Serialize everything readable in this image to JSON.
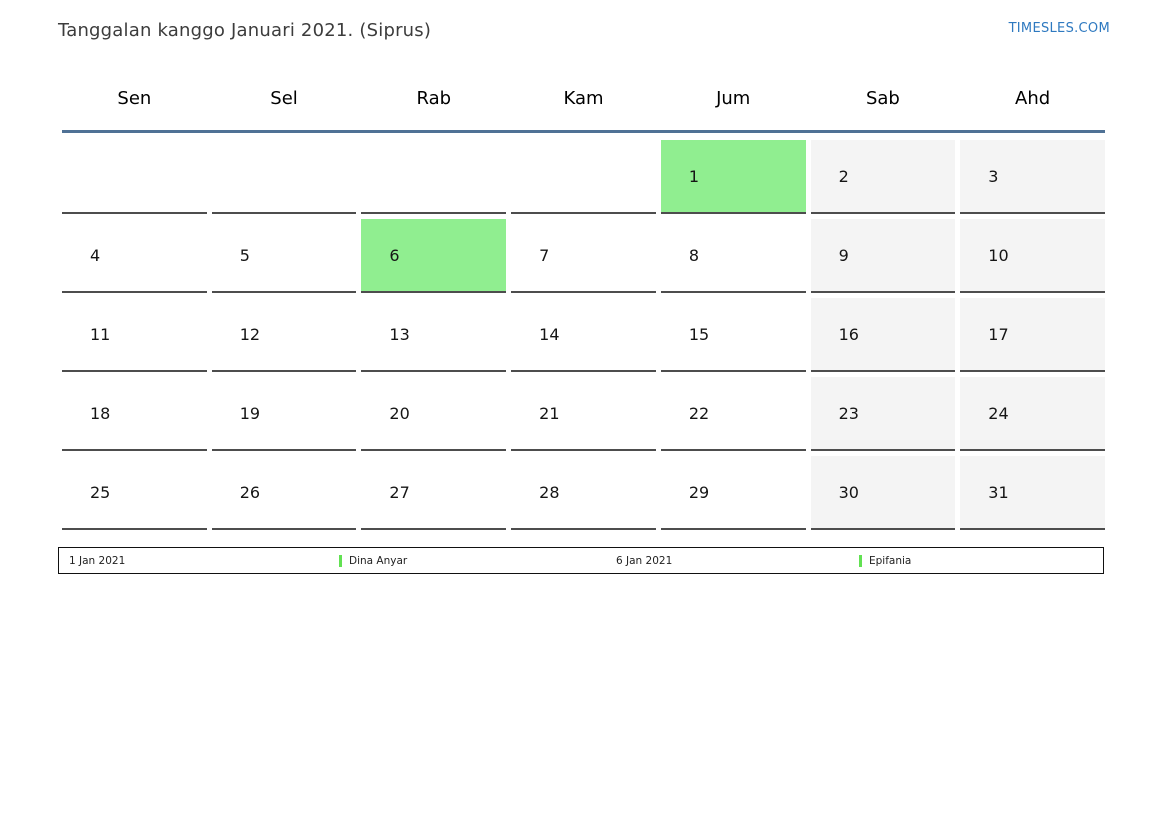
{
  "page": {
    "title": "Tanggalan kanggo Januari 2021. (Siprus)",
    "brand": "TIMESLES.COM"
  },
  "calendar": {
    "month": "Januari",
    "year": "2021",
    "region": "Siprus",
    "day_headers": [
      "Sen",
      "Sel",
      "Rab",
      "Kam",
      "Jum",
      "Sab",
      "Ahd"
    ],
    "weekend_columns": [
      5,
      6
    ],
    "holiday_days": [
      "1",
      "6"
    ],
    "weeks": [
      [
        "",
        "",
        "",
        "",
        "1",
        "2",
        "3"
      ],
      [
        "4",
        "5",
        "6",
        "7",
        "8",
        "9",
        "10"
      ],
      [
        "11",
        "12",
        "13",
        "14",
        "15",
        "16",
        "17"
      ],
      [
        "18",
        "19",
        "20",
        "21",
        "22",
        "23",
        "24"
      ],
      [
        "25",
        "26",
        "27",
        "28",
        "29",
        "30",
        "31"
      ]
    ]
  },
  "legend": {
    "items": [
      {
        "type": "date",
        "label": "1 Jan 2021"
      },
      {
        "type": "event",
        "label": "Dina Anyar",
        "marker": "holiday-marker-icon"
      },
      {
        "type": "date",
        "label": "6 Jan 2021"
      },
      {
        "type": "event",
        "label": "Epifania",
        "marker": "holiday-marker-icon"
      }
    ]
  },
  "colors": {
    "holiday_bg": "#90ee90",
    "weekend_bg": "#f4f4f4",
    "legend_marker": "#62e152",
    "header_line": "#4f7195",
    "brand_blue": "#2e79c0"
  }
}
